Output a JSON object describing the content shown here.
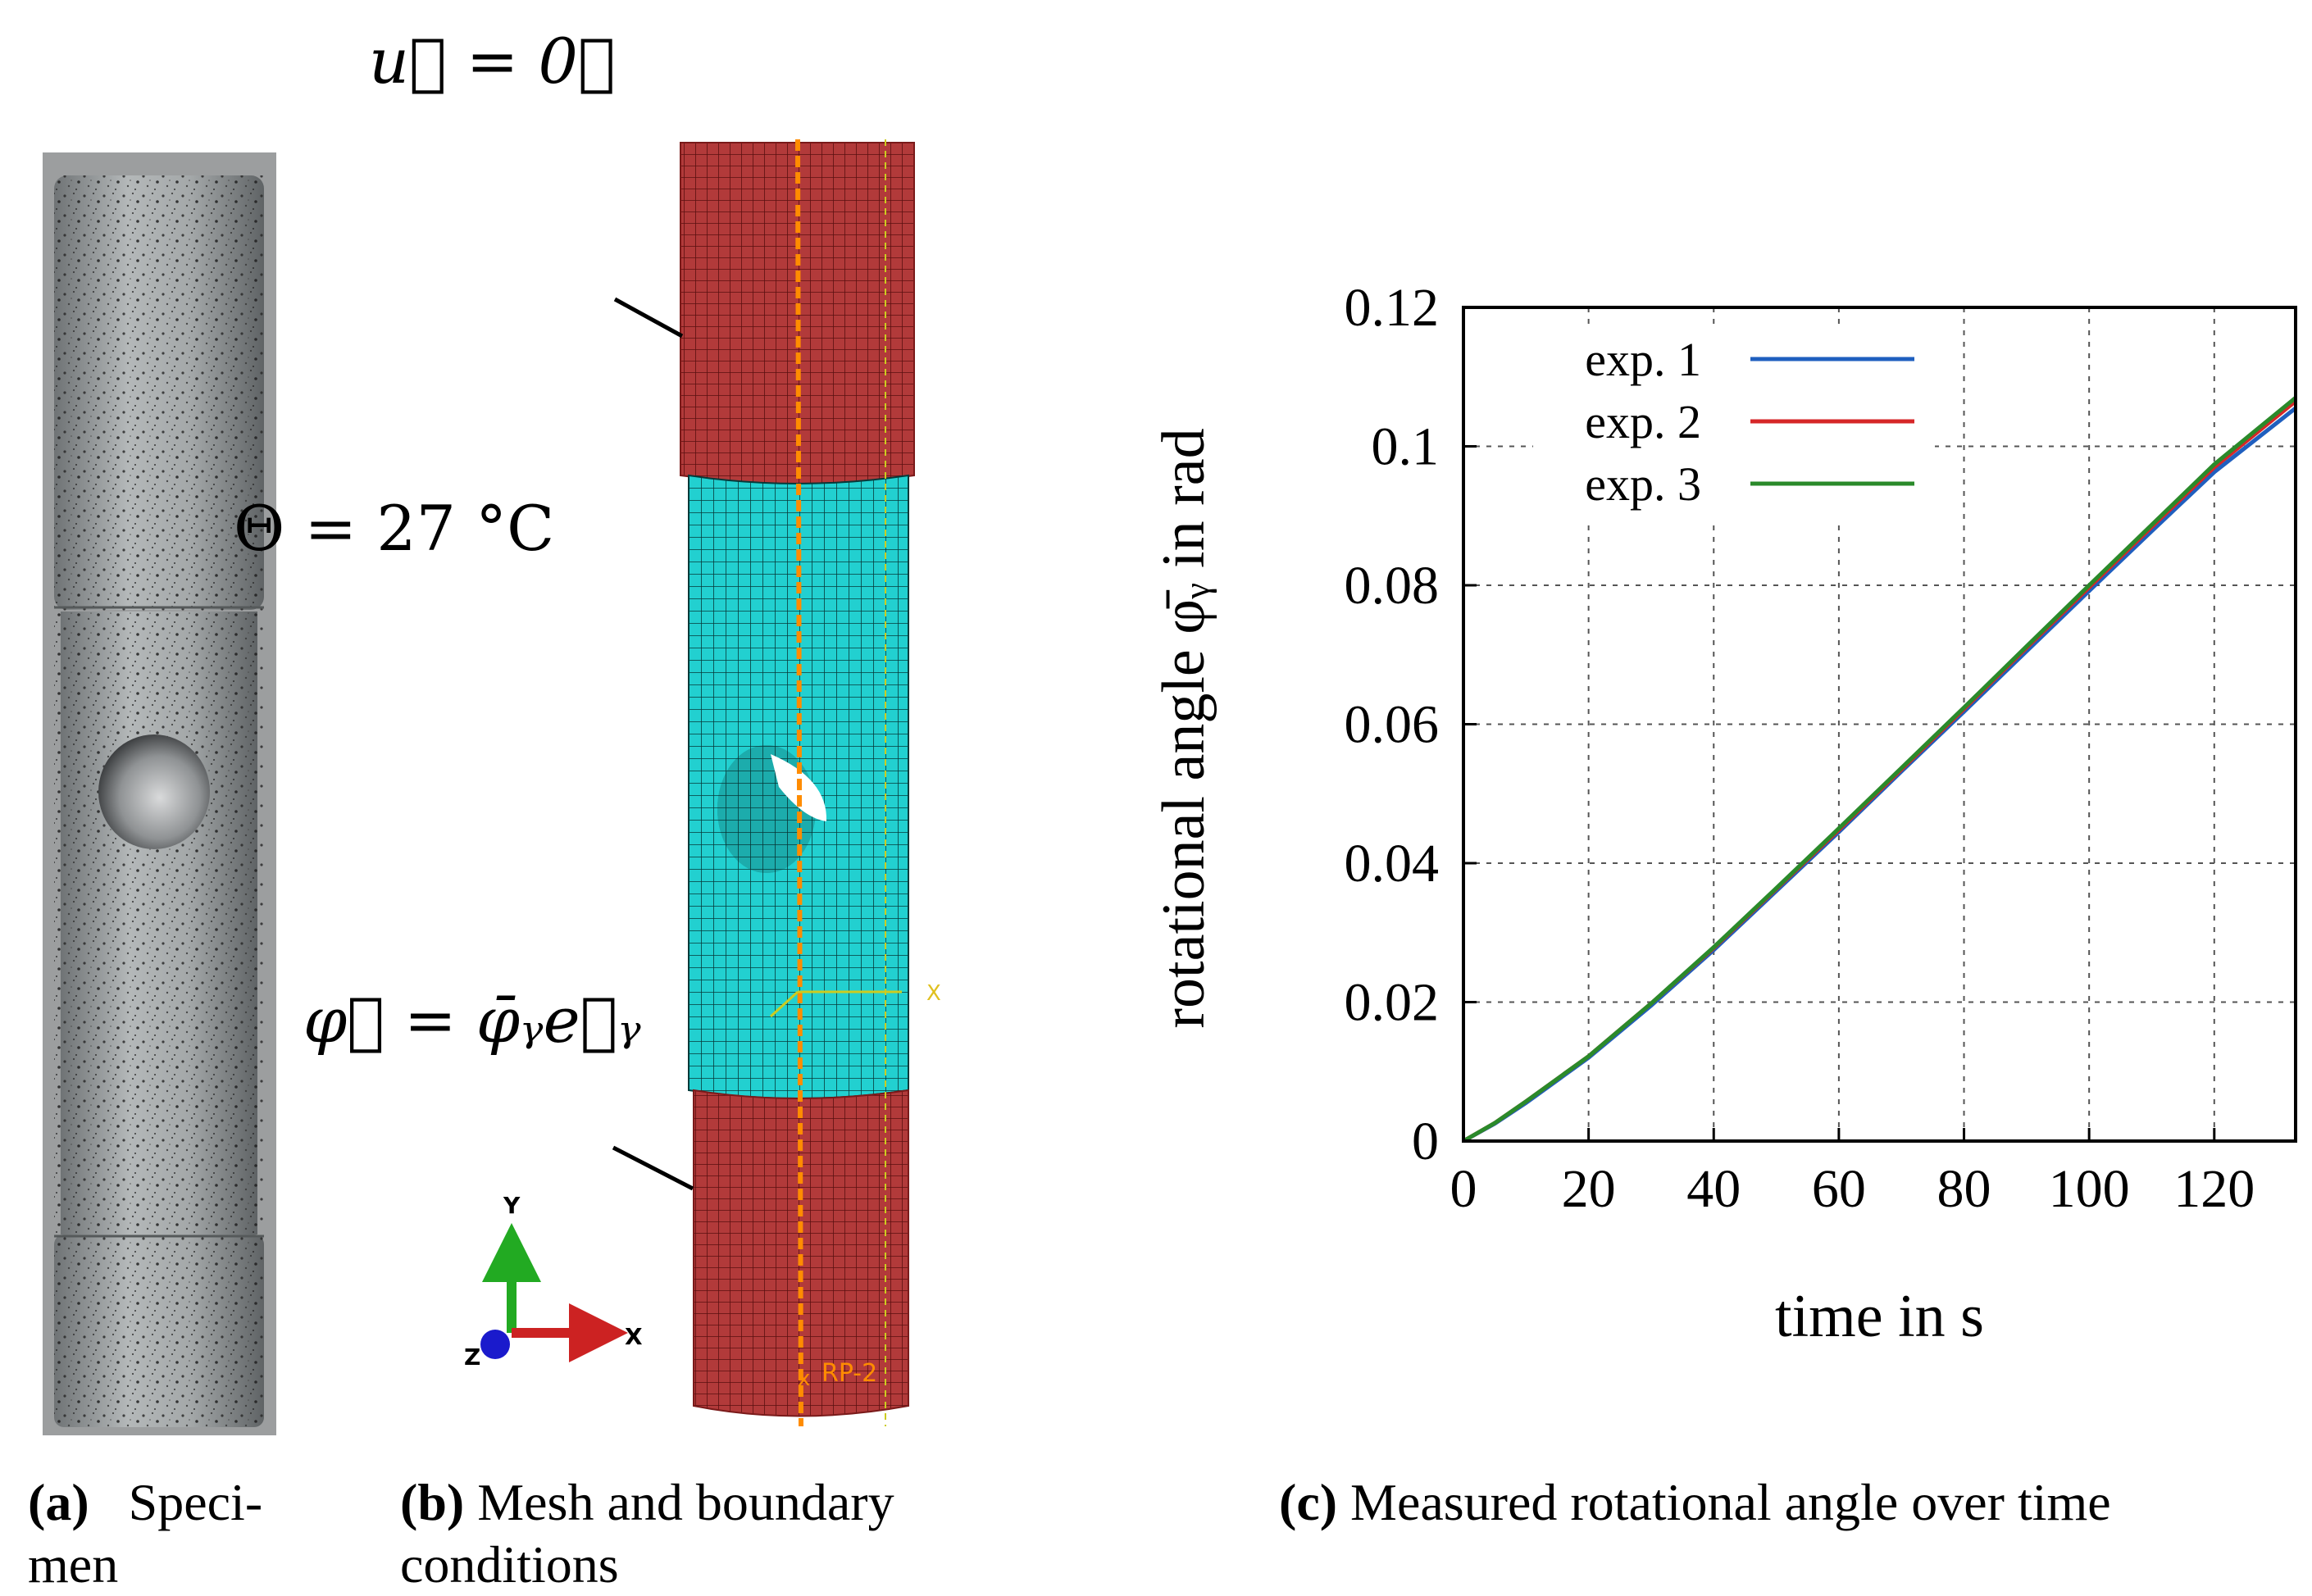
{
  "panel_a": {
    "caption_letter": "(a)",
    "caption_text_line1": "Speci-",
    "caption_text_line2": "men"
  },
  "panel_b": {
    "caption_letter": "(b)",
    "caption_text_line1": "Mesh and boundary",
    "caption_text_line2": "conditions",
    "bc_top": "u⃗ = 0⃗",
    "temperature": "Θ = 27 °C",
    "bc_bottom": "φ⃗ = φ̄ᵧe⃗ᵧ",
    "triad": {
      "y": "Y",
      "x": "X",
      "z": "Z"
    },
    "mesh_x_label": "X",
    "ref_point_label": "RP-2",
    "colors": {
      "fixed_region": "#b03030",
      "gauge_region": "#22d3d3",
      "triad_y": "#22aa22",
      "triad_x": "#cc2222",
      "triad_z": "#1a1acc",
      "ref_line": "#ff8c00"
    }
  },
  "panel_c": {
    "caption_letter": "(c)",
    "caption_text": "Measured rotational angle over time"
  },
  "chart_data": {
    "type": "line",
    "title": "",
    "xlabel": "time in s",
    "ylabel": "rotational angle φ̄ᵧ in rad",
    "xlim": [
      0,
      133
    ],
    "ylim": [
      0,
      0.12
    ],
    "x_ticks": [
      "0",
      "20",
      "40",
      "60",
      "80",
      "100",
      "120"
    ],
    "x_tick_values": [
      0,
      20,
      40,
      60,
      80,
      100,
      120
    ],
    "y_ticks": [
      "0",
      "0.02",
      "0.04",
      "0.06",
      "0.08",
      "0.1",
      "0.12"
    ],
    "y_tick_values": [
      0,
      0.02,
      0.04,
      0.06,
      0.08,
      0.1,
      0.12
    ],
    "grid": true,
    "legend_position": "top-left",
    "x": [
      0,
      5,
      10,
      20,
      30,
      40,
      50,
      60,
      70,
      80,
      90,
      100,
      110,
      120,
      133
    ],
    "series": [
      {
        "name": "exp. 1",
        "color": "#1f5fbf",
        "values": [
          0,
          0.0025,
          0.0055,
          0.012,
          0.0195,
          0.0275,
          0.036,
          0.0445,
          0.0532,
          0.0618,
          0.0705,
          0.0792,
          0.0878,
          0.0963,
          0.1055
        ]
      },
      {
        "name": "exp. 2",
        "color": "#d62728",
        "values": [
          0,
          0.0026,
          0.0057,
          0.0122,
          0.0198,
          0.0278,
          0.0363,
          0.0448,
          0.0535,
          0.0622,
          0.071,
          0.0797,
          0.0884,
          0.097,
          0.1065
        ]
      },
      {
        "name": "exp. 3",
        "color": "#2a8a2a",
        "values": [
          0,
          0.0026,
          0.0057,
          0.0122,
          0.0198,
          0.0279,
          0.0364,
          0.045,
          0.0537,
          0.0624,
          0.0712,
          0.08,
          0.0887,
          0.0974,
          0.107
        ]
      }
    ]
  }
}
